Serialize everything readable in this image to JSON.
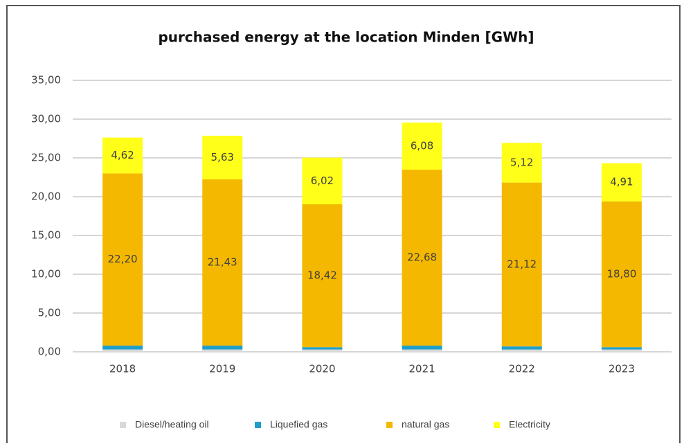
{
  "chart_data": {
    "type": "stacked_bar",
    "title": "purchased energy at the location Minden [GWh]",
    "categories": [
      "2018",
      "2019",
      "2020",
      "2021",
      "2022",
      "2023"
    ],
    "series": [
      {
        "name": "Diesel/heating oil",
        "color": "#d9d9d9",
        "values": [
          0.3,
          0.3,
          0.3,
          0.3,
          0.3,
          0.3
        ]
      },
      {
        "name": "Liquefied gas",
        "color": "#1f9fc9",
        "values": [
          0.5,
          0.5,
          0.3,
          0.5,
          0.4,
          0.3
        ]
      },
      {
        "name": "natural gas",
        "color": "#f5b800",
        "values": [
          22.2,
          21.43,
          18.42,
          22.68,
          21.12,
          18.8
        ],
        "value_labels": [
          "22,20",
          "21,43",
          "18,42",
          "22,68",
          "21,12",
          "18,80"
        ]
      },
      {
        "name": "Electricity",
        "color": "#ffff1a",
        "values": [
          4.62,
          5.63,
          6.02,
          6.08,
          5.12,
          4.91
        ],
        "value_labels": [
          "4,62",
          "5,63",
          "6,02",
          "6,08",
          "5,12",
          "4,91"
        ]
      }
    ],
    "ylim": [
      0,
      35
    ],
    "yticks": [
      {
        "value": 0,
        "label": "0,00"
      },
      {
        "value": 5,
        "label": "5,00"
      },
      {
        "value": 10,
        "label": "10,00"
      },
      {
        "value": 15,
        "label": "15,00"
      },
      {
        "value": 20,
        "label": "20,00"
      },
      {
        "value": 25,
        "label": "25,00"
      },
      {
        "value": 30,
        "label": "30,00"
      },
      {
        "value": 35,
        "label": "35,00"
      }
    ],
    "grid": true,
    "legend": "bottom"
  }
}
